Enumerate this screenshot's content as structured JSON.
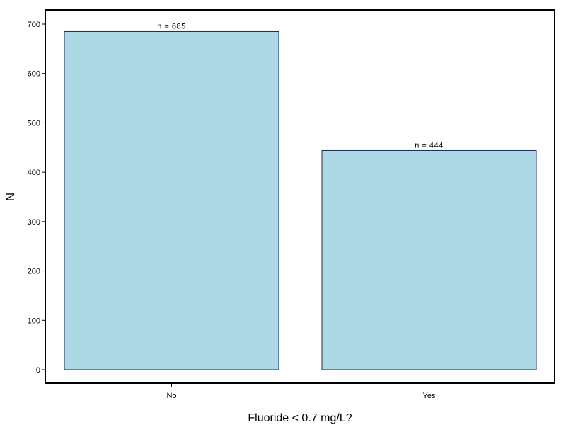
{
  "chart_data": {
    "type": "bar",
    "categories": [
      "No",
      "Yes"
    ],
    "values": [
      685,
      444
    ],
    "data_labels": [
      "n = 685",
      "n = 444"
    ],
    "xlabel": "Fluoride < 0.7 mg/L?",
    "ylabel": "N",
    "ylim": [
      0,
      700
    ],
    "yticks": [
      0,
      100,
      200,
      300,
      400,
      500,
      600,
      700
    ],
    "ytick_labels": [
      "0",
      "100",
      "200",
      "300",
      "400",
      "500",
      "600",
      "700"
    ],
    "grid": false,
    "legend": "none",
    "colors": {
      "bar_fill": "#add8e6",
      "bar_stroke": "#1a2a5a",
      "frame": "#000000",
      "background": "#ffffff"
    }
  }
}
